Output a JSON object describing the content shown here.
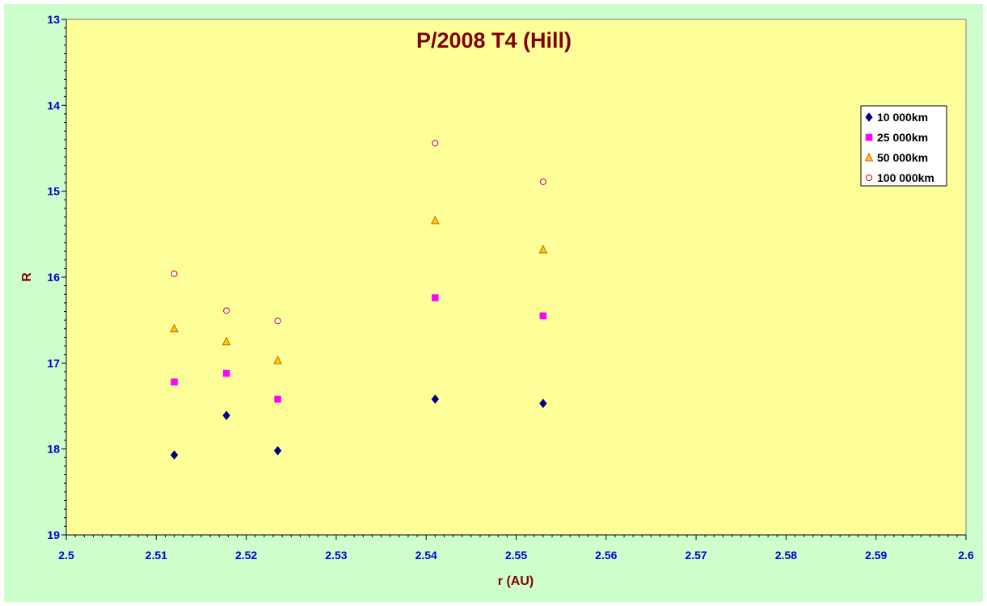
{
  "chart_data": {
    "type": "scatter",
    "title": "P/2008 T4 (Hill)",
    "xlabel": "r (AU)",
    "ylabel": "R",
    "xlim": [
      2.5,
      2.6
    ],
    "ylim": [
      13,
      19
    ],
    "y_inverted": true,
    "x_ticks": [
      "2.5",
      "2.51",
      "2.52",
      "2.53",
      "2.54",
      "2.55",
      "2.56",
      "2.57",
      "2.58",
      "2.59",
      "2.6"
    ],
    "y_ticks": [
      "13",
      "14",
      "15",
      "16",
      "17",
      "18",
      "19"
    ],
    "grid": false,
    "legend_position": "top-right",
    "plot_background": "#ffff99",
    "chart_background": "#ccffcc",
    "series": [
      {
        "name": "10 000km",
        "marker": "diamond",
        "color": "#000080",
        "points": [
          [
            2.512,
            18.07
          ],
          [
            2.5178,
            17.61
          ],
          [
            2.5235,
            18.02
          ],
          [
            2.541,
            17.42
          ],
          [
            2.553,
            17.47
          ]
        ]
      },
      {
        "name": "25 000km",
        "marker": "square",
        "color": "#ff00ff",
        "points": [
          [
            2.512,
            17.22
          ],
          [
            2.5178,
            17.12
          ],
          [
            2.5235,
            17.42
          ],
          [
            2.541,
            16.24
          ],
          [
            2.553,
            16.45
          ]
        ]
      },
      {
        "name": "50 000km",
        "marker": "triangle",
        "color": "#ffcc00",
        "stroke": "#cc6600",
        "points": [
          [
            2.512,
            16.6
          ],
          [
            2.5178,
            16.75
          ],
          [
            2.5235,
            16.97
          ],
          [
            2.541,
            15.34
          ],
          [
            2.553,
            15.68
          ]
        ]
      },
      {
        "name": "100 000km",
        "marker": "circle",
        "color": "#ffffff",
        "stroke": "#cc0000",
        "points": [
          [
            2.512,
            15.96
          ],
          [
            2.5178,
            16.39
          ],
          [
            2.5235,
            16.51
          ],
          [
            2.541,
            14.44
          ],
          [
            2.553,
            14.89
          ]
        ]
      }
    ]
  }
}
